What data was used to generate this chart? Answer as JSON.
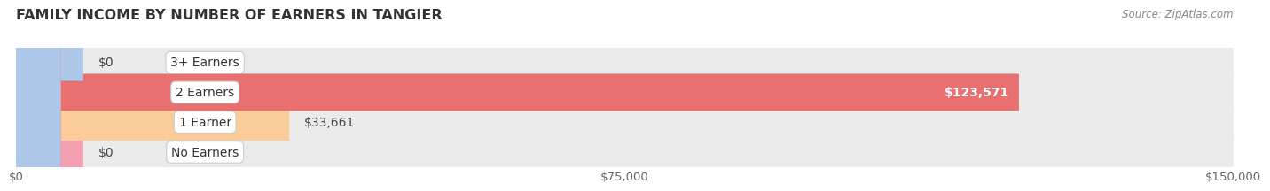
{
  "title": "FAMILY INCOME BY NUMBER OF EARNERS IN TANGIER",
  "source": "Source: ZipAtlas.com",
  "categories": [
    "No Earners",
    "1 Earner",
    "2 Earners",
    "3+ Earners"
  ],
  "values": [
    0,
    33661,
    123571,
    0
  ],
  "max_value": 150000,
  "bar_colors": [
    "#f4a0b0",
    "#f9cc99",
    "#e87070",
    "#adc8e8"
  ],
  "bar_bg_color": "#ebebeb",
  "label_colors": [
    "#555555",
    "#555555",
    "#ffffff",
    "#555555"
  ],
  "label_inside": [
    false,
    false,
    true,
    false
  ],
  "value_labels": [
    "$0",
    "$33,661",
    "$123,571",
    "$0"
  ],
  "xticks": [
    0,
    75000,
    150000
  ],
  "xtick_labels": [
    "$0",
    "$75,000",
    "$150,000"
  ],
  "background_color": "#ffffff",
  "bar_height": 0.62,
  "title_fontsize": 11.5,
  "tick_fontsize": 9.5,
  "label_fontsize": 10,
  "source_fontsize": 8.5
}
